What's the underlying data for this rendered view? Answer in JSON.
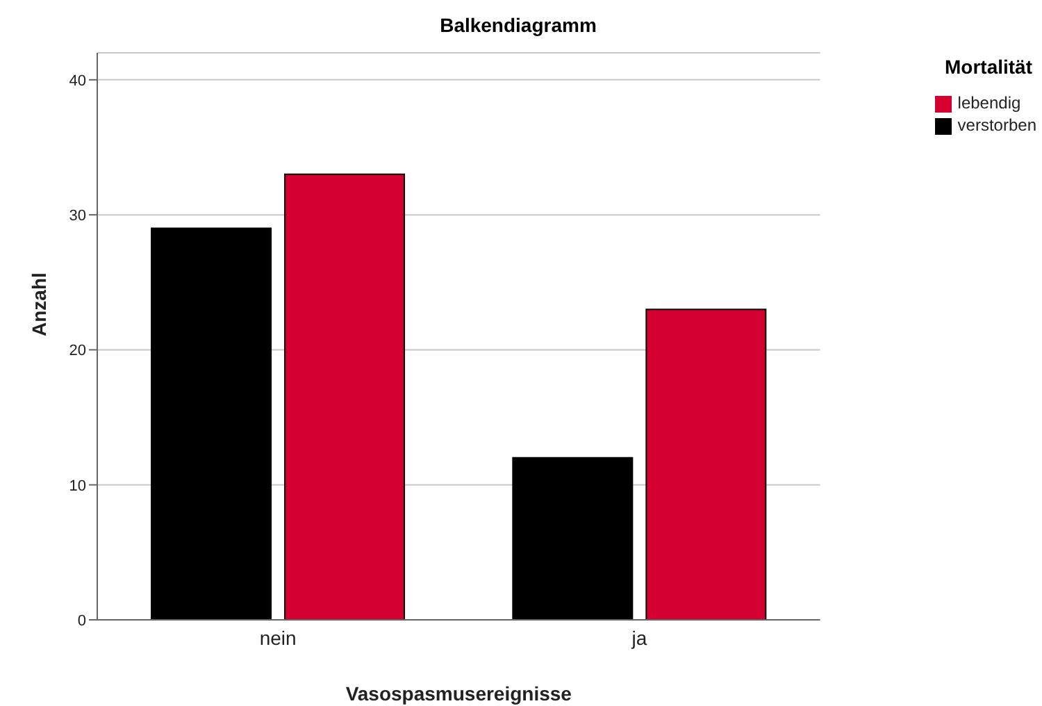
{
  "chart_data": {
    "type": "bar",
    "title": "Balkendiagramm",
    "xlabel": "Vasospasmusereignisse",
    "ylabel": "Anzahl",
    "legend_title": "Mortalität",
    "categories": [
      "nein",
      "ja"
    ],
    "series": [
      {
        "name": "verstorben",
        "color": "#000000",
        "values": [
          29,
          12
        ]
      },
      {
        "name": "lebendig",
        "color": "#d50032",
        "values": [
          33,
          23
        ]
      }
    ],
    "ylim": [
      0,
      42
    ],
    "yticks": [
      0,
      10,
      20,
      30,
      40
    ],
    "grid": "y",
    "legend": "top right"
  }
}
